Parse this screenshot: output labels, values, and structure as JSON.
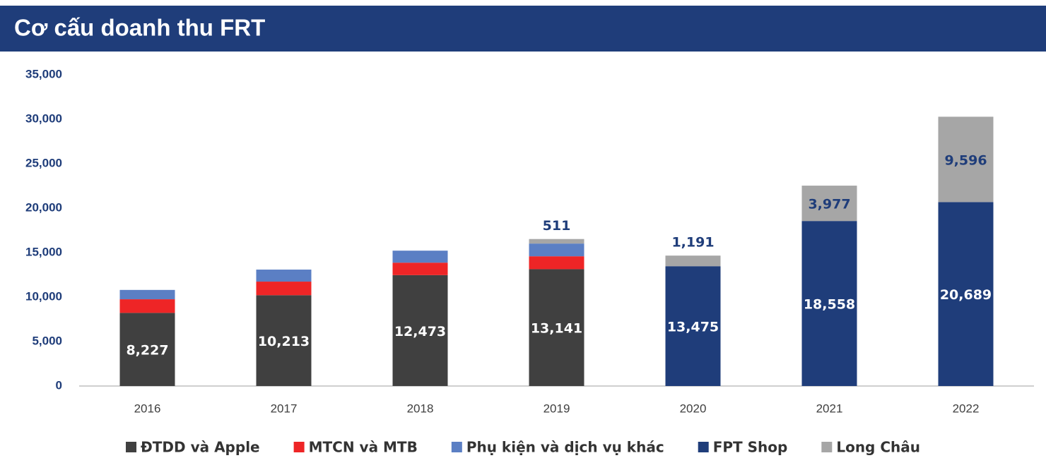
{
  "chart_data": {
    "type": "stacked_bar",
    "title": "Cơ cấu doanh thu FRT",
    "categories": [
      "2016",
      "2017",
      "2018",
      "2019",
      "2020",
      "2021",
      "2022"
    ],
    "series": [
      {
        "name": "ĐTDD và Apple",
        "color": "#404040",
        "values": [
          8227,
          10213,
          12473,
          13141,
          null,
          null,
          null
        ],
        "value_labels": [
          "8,227",
          "10,213",
          "12,473",
          "13,141",
          null,
          null,
          null
        ]
      },
      {
        "name": "MTCN và MTB",
        "color": "#ee2526",
        "values": [
          1530,
          1530,
          1400,
          1450,
          null,
          null,
          null
        ]
      },
      {
        "name": "Phụ kiện và dịch vụ khác",
        "color": "#5b7fc4",
        "values": [
          1050,
          1350,
          1350,
          1430,
          null,
          null,
          null
        ]
      },
      {
        "name": "FPT Shop",
        "color": "#1f3d7a",
        "values": [
          null,
          null,
          null,
          null,
          13475,
          18558,
          20689
        ],
        "value_labels": [
          null,
          null,
          null,
          null,
          "13,475",
          "18,558",
          "20,689"
        ]
      },
      {
        "name": "Long Châu",
        "color": "#a6a6a6",
        "values": [
          null,
          null,
          null,
          511,
          1191,
          3977,
          9596
        ],
        "value_labels": [
          null,
          null,
          null,
          "511",
          "1,191",
          "3,977",
          "9,596"
        ]
      }
    ],
    "ylim": [
      0,
      35000
    ],
    "yticks": [
      0,
      {
        "value": 5000,
        "label": "5,000"
      },
      {
        "value": 10000,
        "label": "10,000"
      },
      {
        "value": 15000,
        "label": "15,000"
      },
      {
        "value": 20000,
        "label": "20,000"
      },
      {
        "value": 25000,
        "label": "25,000"
      },
      {
        "value": 30000,
        "label": "30,000"
      },
      {
        "value": 35000,
        "label": "35,000"
      }
    ],
    "grid": false,
    "legend": "bottom"
  }
}
